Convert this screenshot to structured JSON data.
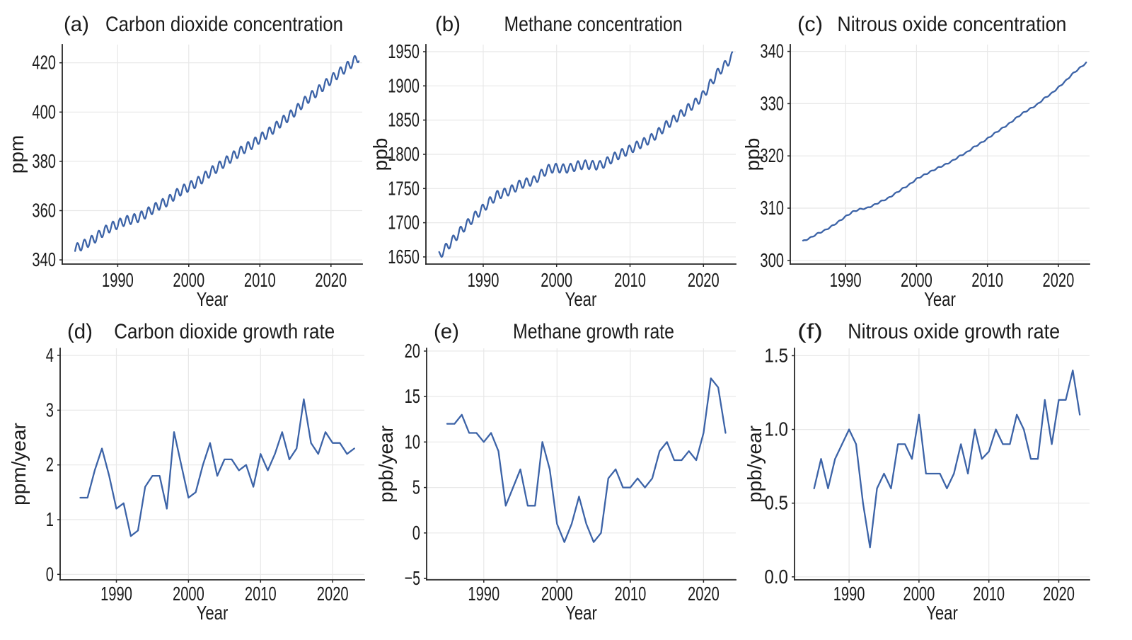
{
  "figure": {
    "background": "#ffffff",
    "line_color": "#3c63a7",
    "grid_color": "#e8e8e8",
    "spine_color": "#262626",
    "text_color": "#1b1b1b",
    "layout": "2 rows x 3 columns of line charts"
  },
  "chart_data": [
    {
      "id": "a",
      "type": "line",
      "panel_label": "(a)",
      "title": "Carbon dioxide concentration",
      "xlabel": "Year",
      "ylabel": "ppm",
      "xlim": [
        1982.2,
        2024.4
      ],
      "ylim": [
        338.3,
        427.4
      ],
      "xticks": [
        1990,
        2000,
        2010,
        2020
      ],
      "xtick_labels": [
        "1990",
        "2000",
        "2010",
        "2020"
      ],
      "yticks": [
        340,
        360,
        380,
        400,
        420
      ],
      "ytick_labels": [
        "340",
        "360",
        "380",
        "400",
        "420"
      ],
      "grid": true,
      "legend": "none",
      "series": {
        "kind": "monthly_from_annual",
        "start_year": 1984,
        "end_year": 2024,
        "seasonal_amplitude": 1.9,
        "seasonal_phase": -0.08,
        "annual_values": [
          344.5,
          345.9,
          347.3,
          349.2,
          351.5,
          353.3,
          354.5,
          355.8,
          356.5,
          357.3,
          358.9,
          360.7,
          362.5,
          363.7,
          366.3,
          368.3,
          369.7,
          371.2,
          373.2,
          375.6,
          377.4,
          379.5,
          381.6,
          383.5,
          385.5,
          387.1,
          389.3,
          391.2,
          393.4,
          396.0,
          398.1,
          400.4,
          403.6,
          406.0,
          408.2,
          410.8,
          413.2,
          415.6,
          417.8,
          420.1,
          422.5
        ]
      }
    },
    {
      "id": "b",
      "type": "line",
      "panel_label": "(b)",
      "title": "Methane concentration",
      "xlabel": "Year",
      "ylabel": "ppb",
      "xlim": [
        1982.2,
        2024.4
      ],
      "ylim": [
        1639.6,
        1960.3
      ],
      "xticks": [
        1990,
        2000,
        2010,
        2020
      ],
      "xtick_labels": [
        "1990",
        "2000",
        "2010",
        "2020"
      ],
      "yticks": [
        1650,
        1700,
        1750,
        1800,
        1850,
        1900,
        1950
      ],
      "ytick_labels": [
        "1650",
        "1700",
        "1750",
        "1800",
        "1850",
        "1900",
        "1950"
      ],
      "grid": true,
      "legend": "none",
      "series": {
        "kind": "monthly_from_annual",
        "start_year": 1984,
        "end_year": 2024,
        "seasonal_amplitude": 6.5,
        "seasonal_phase": 0.35,
        "annual_values": [
          1652,
          1664,
          1676,
          1689,
          1700,
          1711,
          1721,
          1732,
          1741,
          1744,
          1749,
          1756,
          1759,
          1762,
          1772,
          1779,
          1780,
          1779,
          1780,
          1784,
          1785,
          1784,
          1784,
          1790,
          1797,
          1802,
          1807,
          1813,
          1818,
          1824,
          1833,
          1843,
          1851,
          1859,
          1868,
          1876,
          1887,
          1904,
          1920,
          1931,
          1944
        ]
      }
    },
    {
      "id": "c",
      "type": "line",
      "panel_label": "(c)",
      "title": "Nitrous oxide concentration",
      "xlabel": "Year",
      "ylabel": "ppb",
      "xlim": [
        1982.2,
        2024.4
      ],
      "ylim": [
        299.3,
        341.3
      ],
      "xticks": [
        1990,
        2000,
        2010,
        2020
      ],
      "xtick_labels": [
        "1990",
        "2000",
        "2010",
        "2020"
      ],
      "yticks": [
        300,
        310,
        320,
        330,
        340
      ],
      "ytick_labels": [
        "300",
        "310",
        "320",
        "330",
        "340"
      ],
      "grid": true,
      "legend": "none",
      "series": {
        "kind": "monthly_from_annual",
        "start_year": 1984,
        "end_year": 2024,
        "seasonal_amplitude": 0.11,
        "seasonal_phase": 0.2,
        "annual_values": [
          303.7,
          304.3,
          305.1,
          305.7,
          306.5,
          307.4,
          308.4,
          309.3,
          309.8,
          310.0,
          310.6,
          311.3,
          311.9,
          312.8,
          313.7,
          314.5,
          315.6,
          316.3,
          317.0,
          317.7,
          318.3,
          319.0,
          319.9,
          320.6,
          321.6,
          322.4,
          323.3,
          324.3,
          325.2,
          326.1,
          327.2,
          328.2,
          329.0,
          329.8,
          331.0,
          331.9,
          333.1,
          334.3,
          335.7,
          336.8,
          337.9
        ]
      }
    },
    {
      "id": "d",
      "type": "line",
      "panel_label": "(d)",
      "title": "Carbon dioxide growth rate",
      "xlabel": "Year",
      "ylabel": "ppm/year",
      "xlim": [
        1982.2,
        2024.4
      ],
      "ylim": [
        -0.1,
        4.13
      ],
      "xticks": [
        1990,
        2000,
        2010,
        2020
      ],
      "xtick_labels": [
        "1990",
        "2000",
        "2010",
        "2020"
      ],
      "yticks": [
        0,
        1,
        2,
        3,
        4
      ],
      "ytick_labels": [
        "0",
        "1",
        "2",
        "3",
        "4"
      ],
      "grid": true,
      "legend": "none",
      "series": {
        "kind": "annual",
        "start_year": 1985,
        "values": [
          1.4,
          1.4,
          1.9,
          2.3,
          1.8,
          1.2,
          1.3,
          0.7,
          0.8,
          1.6,
          1.8,
          1.8,
          1.2,
          2.6,
          2.0,
          1.4,
          1.5,
          2.0,
          2.4,
          1.8,
          2.1,
          2.1,
          1.9,
          2.0,
          1.6,
          2.2,
          1.9,
          2.2,
          2.6,
          2.1,
          2.3,
          3.2,
          2.4,
          2.2,
          2.6,
          2.4,
          2.4,
          2.2,
          2.3
        ]
      }
    },
    {
      "id": "e",
      "type": "line",
      "panel_label": "(e)",
      "title": "Methane growth rate",
      "xlabel": "Year",
      "ylabel": "ppb/year",
      "xlim": [
        1982.2,
        2024.4
      ],
      "ylim": [
        -5.15,
        20.3
      ],
      "xticks": [
        1990,
        2000,
        2010,
        2020
      ],
      "xtick_labels": [
        "1990",
        "2000",
        "2010",
        "2020"
      ],
      "yticks": [
        -5,
        0,
        5,
        10,
        15,
        20
      ],
      "ytick_labels": [
        "−5",
        "0",
        "5",
        "10",
        "15",
        "20"
      ],
      "grid": true,
      "legend": "none",
      "series": {
        "kind": "annual",
        "start_year": 1985,
        "values": [
          12,
          12,
          13,
          11,
          11,
          10,
          11,
          9,
          3,
          5,
          7,
          3,
          3,
          10,
          7,
          1,
          -1,
          1,
          4,
          1,
          -1,
          0,
          6,
          7,
          5,
          5,
          6,
          5,
          6,
          9,
          10,
          8,
          8,
          9,
          8,
          11,
          17,
          16,
          11
        ]
      }
    },
    {
      "id": "f",
      "type": "line",
      "panel_label": "(f)",
      "title": "Nitrous oxide growth rate",
      "xlabel": "Year",
      "ylabel": "ppb/year",
      "xlim": [
        1982.2,
        2024.4
      ],
      "ylim": [
        -0.02,
        1.55
      ],
      "xticks": [
        1990,
        2000,
        2010,
        2020
      ],
      "xtick_labels": [
        "1990",
        "2000",
        "2010",
        "2020"
      ],
      "yticks": [
        0,
        0.5,
        1.0,
        1.5
      ],
      "ytick_labels": [
        "0.0",
        "0.5",
        "1.0",
        "1.5"
      ],
      "grid": true,
      "legend": "none",
      "series": {
        "kind": "annual",
        "start_year": 1985,
        "values": [
          0.6,
          0.8,
          0.6,
          0.8,
          0.9,
          1.0,
          0.9,
          0.5,
          0.2,
          0.6,
          0.7,
          0.6,
          0.9,
          0.9,
          0.8,
          1.1,
          0.7,
          0.7,
          0.7,
          0.6,
          0.7,
          0.9,
          0.7,
          1.0,
          0.8,
          0.85,
          1.0,
          0.9,
          0.9,
          1.1,
          1.0,
          0.8,
          0.8,
          1.2,
          0.9,
          1.2,
          1.2,
          1.4,
          1.1
        ]
      }
    }
  ]
}
